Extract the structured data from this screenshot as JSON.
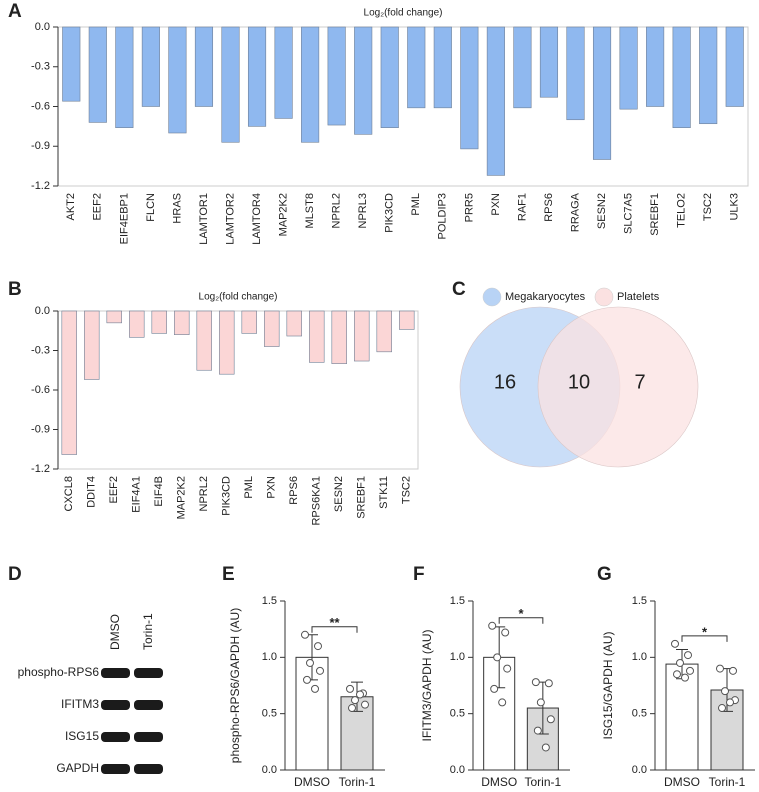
{
  "chart_data": [
    {
      "type": "bar",
      "label": "A",
      "title": "Log₂(fold change)",
      "categories": [
        "AKT2",
        "EEF2",
        "EIF4EBP1",
        "FLCN",
        "HRAS",
        "LAMTOR1",
        "LAMTOR2",
        "LAMTOR4",
        "MAP2K2",
        "MLST8",
        "NPRL2",
        "NPRL3",
        "PIK3CD",
        "PML",
        "POLDIP3",
        "PRR5",
        "PXN",
        "RAF1",
        "RPS6",
        "RRAGA",
        "SESN2",
        "SLC7A5",
        "SREBF1",
        "TELO2",
        "TSC2",
        "ULK3"
      ],
      "values": [
        -0.56,
        -0.72,
        -0.76,
        -0.6,
        -0.8,
        -0.6,
        -0.87,
        -0.75,
        -0.69,
        -0.87,
        -0.74,
        -0.81,
        -0.76,
        -0.61,
        -0.61,
        -0.92,
        -1.12,
        -0.61,
        -0.53,
        -0.7,
        -1.0,
        -0.62,
        -0.6,
        -0.76,
        -0.73,
        -0.6
      ],
      "color": "#8fb8ef",
      "ylim": [
        -1.2,
        0
      ],
      "yticks": [
        {
          "value": 0,
          "label": "0.0"
        },
        -0.3,
        -0.6,
        -0.9,
        -1.2
      ]
    },
    {
      "type": "bar",
      "label": "B",
      "title": "Log₂(fold change)",
      "categories": [
        "CXCL8",
        "DDIT4",
        "EEF2",
        "EIF4A1",
        "EIF4B",
        "MAP2K2",
        "NPRL2",
        "PIK3CD",
        "PML",
        "PXN",
        "RPS6",
        "RPS6KA1",
        "SESN2",
        "SREBF1",
        "STK11",
        "TSC2"
      ],
      "values": [
        -1.09,
        -0.52,
        -0.09,
        -0.2,
        -0.17,
        -0.18,
        -0.45,
        -0.48,
        -0.17,
        -0.27,
        -0.19,
        -0.39,
        -0.4,
        -0.38,
        -0.31,
        -0.14
      ],
      "color": "#fbd6d6",
      "ylim": [
        -1.2,
        0
      ],
      "yticks": [
        {
          "value": 0,
          "label": "0.0"
        },
        -0.3,
        -0.6,
        -0.9,
        -1.2
      ]
    },
    {
      "type": "venn",
      "label": "C",
      "sets": [
        {
          "name": "Megakaryocytes",
          "color": "#b8d3f5"
        },
        {
          "name": "Platelets",
          "color": "#fbe1e1"
        }
      ],
      "values": [
        16,
        10,
        7
      ]
    },
    {
      "type": "blot",
      "label": "D",
      "columns": [
        "DMSO",
        "Torin-1"
      ],
      "rows": [
        "phospho-RPS6",
        "IFITM3",
        "ISG15",
        "GAPDH"
      ]
    },
    {
      "type": "dotbar",
      "label": "E",
      "ylabel": "phospho-RPS6/GAPDH (AU)",
      "categories": [
        "DMSO",
        "Torin-1"
      ],
      "values": [
        1.0,
        0.65
      ],
      "errors": [
        0.2,
        0.13
      ],
      "colors": [
        "#ffffff",
        "#d9d9d9"
      ],
      "points": [
        [
          1.2,
          1.1,
          0.95,
          0.88,
          0.8,
          0.72
        ],
        [
          0.72,
          0.68,
          0.62,
          0.58,
          0.55,
          0.67
        ]
      ],
      "significance": "**",
      "ylim": [
        0,
        1.5
      ],
      "yticks": [
        {
          "value": 0,
          "label": "0.0"
        },
        0.5,
        {
          "value": 1,
          "label": "1.0"
        },
        1.5
      ]
    },
    {
      "type": "dotbar",
      "label": "F",
      "ylabel": "IFITM3/GAPDH (AU)",
      "categories": [
        "DMSO",
        "Torin-1"
      ],
      "values": [
        1.0,
        0.55
      ],
      "errors": [
        0.27,
        0.23
      ],
      "colors": [
        "#ffffff",
        "#d9d9d9"
      ],
      "points": [
        [
          1.28,
          1.22,
          1.0,
          0.9,
          0.72,
          0.6
        ],
        [
          0.78,
          0.77,
          0.6,
          0.45,
          0.35,
          0.2
        ]
      ],
      "significance": "*",
      "ylim": [
        0,
        1.5
      ],
      "yticks": [
        {
          "value": 0,
          "label": "0.0"
        },
        0.5,
        {
          "value": 1,
          "label": "1.0"
        },
        1.5
      ]
    },
    {
      "type": "dotbar",
      "label": "G",
      "ylabel": "ISG15/GAPDH (AU)",
      "categories": [
        "DMSO",
        "Torin-1"
      ],
      "values": [
        0.94,
        0.71
      ],
      "errors": [
        0.13,
        0.19
      ],
      "colors": [
        "#ffffff",
        "#d9d9d9"
      ],
      "points": [
        [
          1.12,
          1.02,
          0.95,
          0.88,
          0.85,
          0.82
        ],
        [
          0.9,
          0.88,
          0.7,
          0.62,
          0.55,
          0.6
        ]
      ],
      "significance": "*",
      "ylim": [
        0,
        1.5
      ],
      "yticks": [
        {
          "value": 0,
          "label": "0.0"
        },
        0.5,
        {
          "value": 1,
          "label": "1.0"
        },
        1.5
      ]
    }
  ]
}
